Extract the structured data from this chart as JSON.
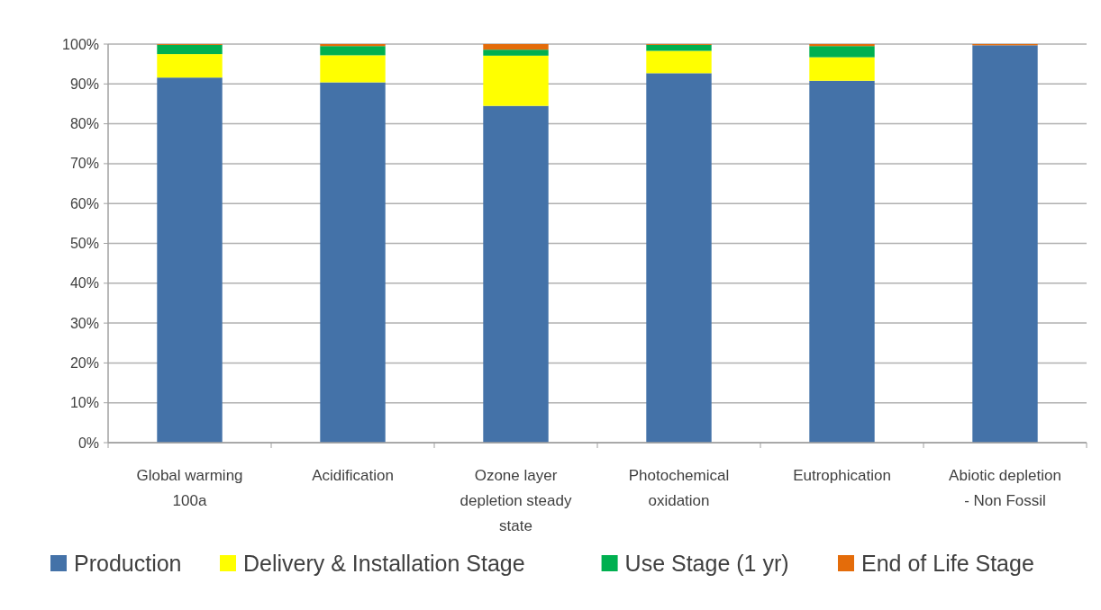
{
  "chart_data": {
    "type": "bar",
    "stacked": true,
    "categories": [
      "Global warming 100a",
      "Acidification",
      "Ozone layer depletion steady state",
      "Photochemical oxidation",
      "Eutrophication",
      "Abiotic depletion - Non Fossil"
    ],
    "series": [
      {
        "name": "Production",
        "color": "#4472a8",
        "values": [
          91.6,
          90.4,
          84.5,
          92.7,
          90.8,
          99.7
        ]
      },
      {
        "name": "Delivery & Installation Stage",
        "color": "#ffff00",
        "values": [
          5.9,
          6.8,
          12.6,
          5.6,
          5.9,
          0
        ]
      },
      {
        "name": "Use Stage (1 yr)",
        "color": "#00b050",
        "values": [
          2.3,
          2.3,
          1.5,
          1.5,
          2.8,
          0
        ]
      },
      {
        "name": "End of Life Stage",
        "color": "#e46c0a",
        "values": [
          0.2,
          0.5,
          1.4,
          0.2,
          0.5,
          0.3
        ]
      }
    ],
    "ylim": [
      0,
      100
    ],
    "yticks": [
      {
        "value": 0,
        "label": "0%"
      },
      {
        "value": 10,
        "label": "10%"
      },
      {
        "value": 20,
        "label": "20%"
      },
      {
        "value": 30,
        "label": "30%"
      },
      {
        "value": 40,
        "label": "40%"
      },
      {
        "value": 50,
        "label": "50%"
      },
      {
        "value": 60,
        "label": "60%"
      },
      {
        "value": 70,
        "label": "70%"
      },
      {
        "value": 80,
        "label": "80%"
      },
      {
        "value": 90,
        "label": "90%"
      },
      {
        "value": 100,
        "label": "100%"
      }
    ],
    "grid": "y",
    "legend": "bottom"
  }
}
